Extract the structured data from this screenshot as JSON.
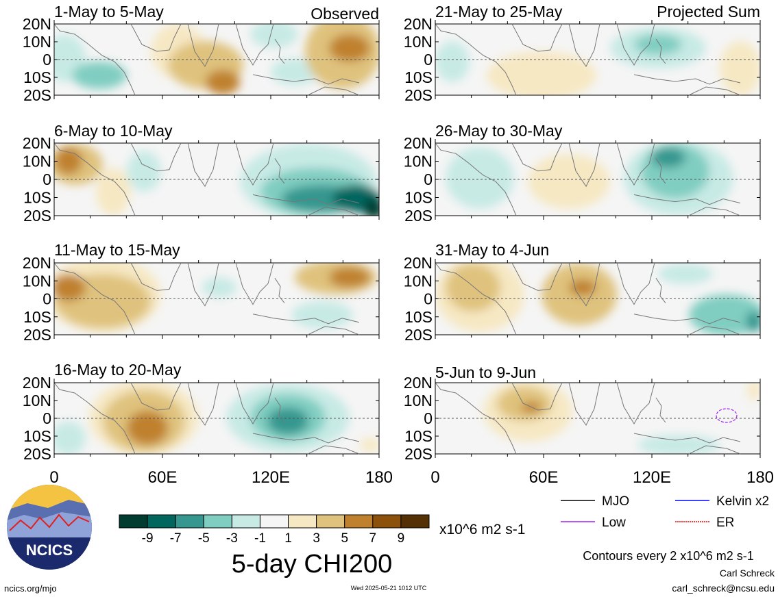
{
  "panels": [
    {
      "title": "1-May to 5-May",
      "tag": "Observed"
    },
    {
      "title": "21-May to 25-May",
      "tag": "Projected Sum"
    },
    {
      "title": "6-May to 10-May",
      "tag": ""
    },
    {
      "title": "26-May to 30-May",
      "tag": ""
    },
    {
      "title": "11-May to 15-May",
      "tag": ""
    },
    {
      "title": "31-May to 4-Jun",
      "tag": ""
    },
    {
      "title": "16-May to 20-May",
      "tag": ""
    },
    {
      "title": "5-Jun to 9-Jun",
      "tag": ""
    }
  ],
  "lat_labels": [
    "20N",
    "10N",
    "0",
    "10S",
    "20S"
  ],
  "lon_labels": [
    "0",
    "60E",
    "120E",
    "180"
  ],
  "colorbar": {
    "colors": [
      "#003c30",
      "#01665e",
      "#35978f",
      "#80cdc1",
      "#c7eae5",
      "#f5f5f5",
      "#f6e8c3",
      "#dfc27d",
      "#bf812d",
      "#8c510a",
      "#543005"
    ],
    "labels": [
      "-9",
      "-7",
      "-5",
      "-3",
      "-1",
      "1",
      "3",
      "5",
      "7",
      "9"
    ],
    "units": "x10^6 m2 s-1"
  },
  "main_title": "5-day CHI200",
  "legend": [
    {
      "label": "MJO",
      "color": "#000000",
      "style": "solid"
    },
    {
      "label": "Kelvin x2",
      "color": "#0000ff",
      "style": "solid"
    },
    {
      "label": "Low",
      "color": "#a020f0",
      "style": "solid"
    },
    {
      "label": "ER",
      "color": "#ff0000",
      "style": "dotted"
    }
  ],
  "contours_note": "Contours every 2 x10^6 m2 s-1",
  "author": "Carl Schreck",
  "email": "carl_schreck@ncsu.edu",
  "site": "ncics.org/mjo",
  "timestamp": "Wed 2025-05-21 1012 UTC",
  "logo_text": "NCICS"
}
